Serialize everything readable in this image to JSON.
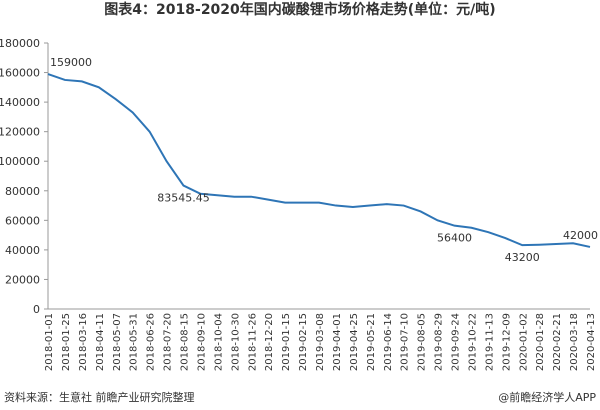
{
  "chart_data": {
    "type": "line",
    "title": "图表4：2018-2020年国内碳酸锂市场价格走势(单位：元/吨)",
    "source": "资料来源：生意社 前瞻产业研究院整理",
    "credit": "@前瞻经济学人APP",
    "categories": [
      "2018-01-01",
      "2018-01-25",
      "2018-03-16",
      "2018-04-11",
      "2018-05-07",
      "2018-05-31",
      "2018-06-26",
      "2018-07-20",
      "2018-08-15",
      "2018-09-10",
      "2018-10-04",
      "2018-10-30",
      "2018-11-26",
      "2018-12-20",
      "2019-01-15",
      "2019-02-15",
      "2019-03-08",
      "2019-04-01",
      "2019-04-25",
      "2019-05-21",
      "2019-06-14",
      "2019-07-10",
      "2019-08-05",
      "2019-08-29",
      "2019-09-24",
      "2019-10-22",
      "2019-11-13",
      "2019-12-09",
      "2020-01-02",
      "2020-01-28",
      "2020-02-21",
      "2020-03-18",
      "2020-04-13"
    ],
    "values": [
      159000,
      155000,
      154000,
      150000,
      142000,
      133000,
      120000,
      100000,
      83545.45,
      78000,
      77000,
      76000,
      76000,
      74000,
      72000,
      72000,
      72000,
      70000,
      69000,
      70000,
      71000,
      70000,
      66000,
      60000,
      56400,
      55000,
      52000,
      48000,
      43200,
      43500,
      44000,
      44500,
      42000
    ],
    "value_labels": [
      "159000",
      null,
      null,
      null,
      null,
      null,
      null,
      null,
      "83545.45",
      null,
      null,
      null,
      null,
      null,
      null,
      null,
      null,
      null,
      null,
      null,
      null,
      null,
      null,
      null,
      "56400",
      null,
      null,
      null,
      "43200",
      null,
      null,
      null,
      "42000"
    ],
    "color": "#2e75b6",
    "ylim": [
      0,
      180000
    ],
    "yticks": [
      0,
      20000,
      40000,
      60000,
      80000,
      100000,
      120000,
      140000,
      160000,
      180000
    ]
  }
}
